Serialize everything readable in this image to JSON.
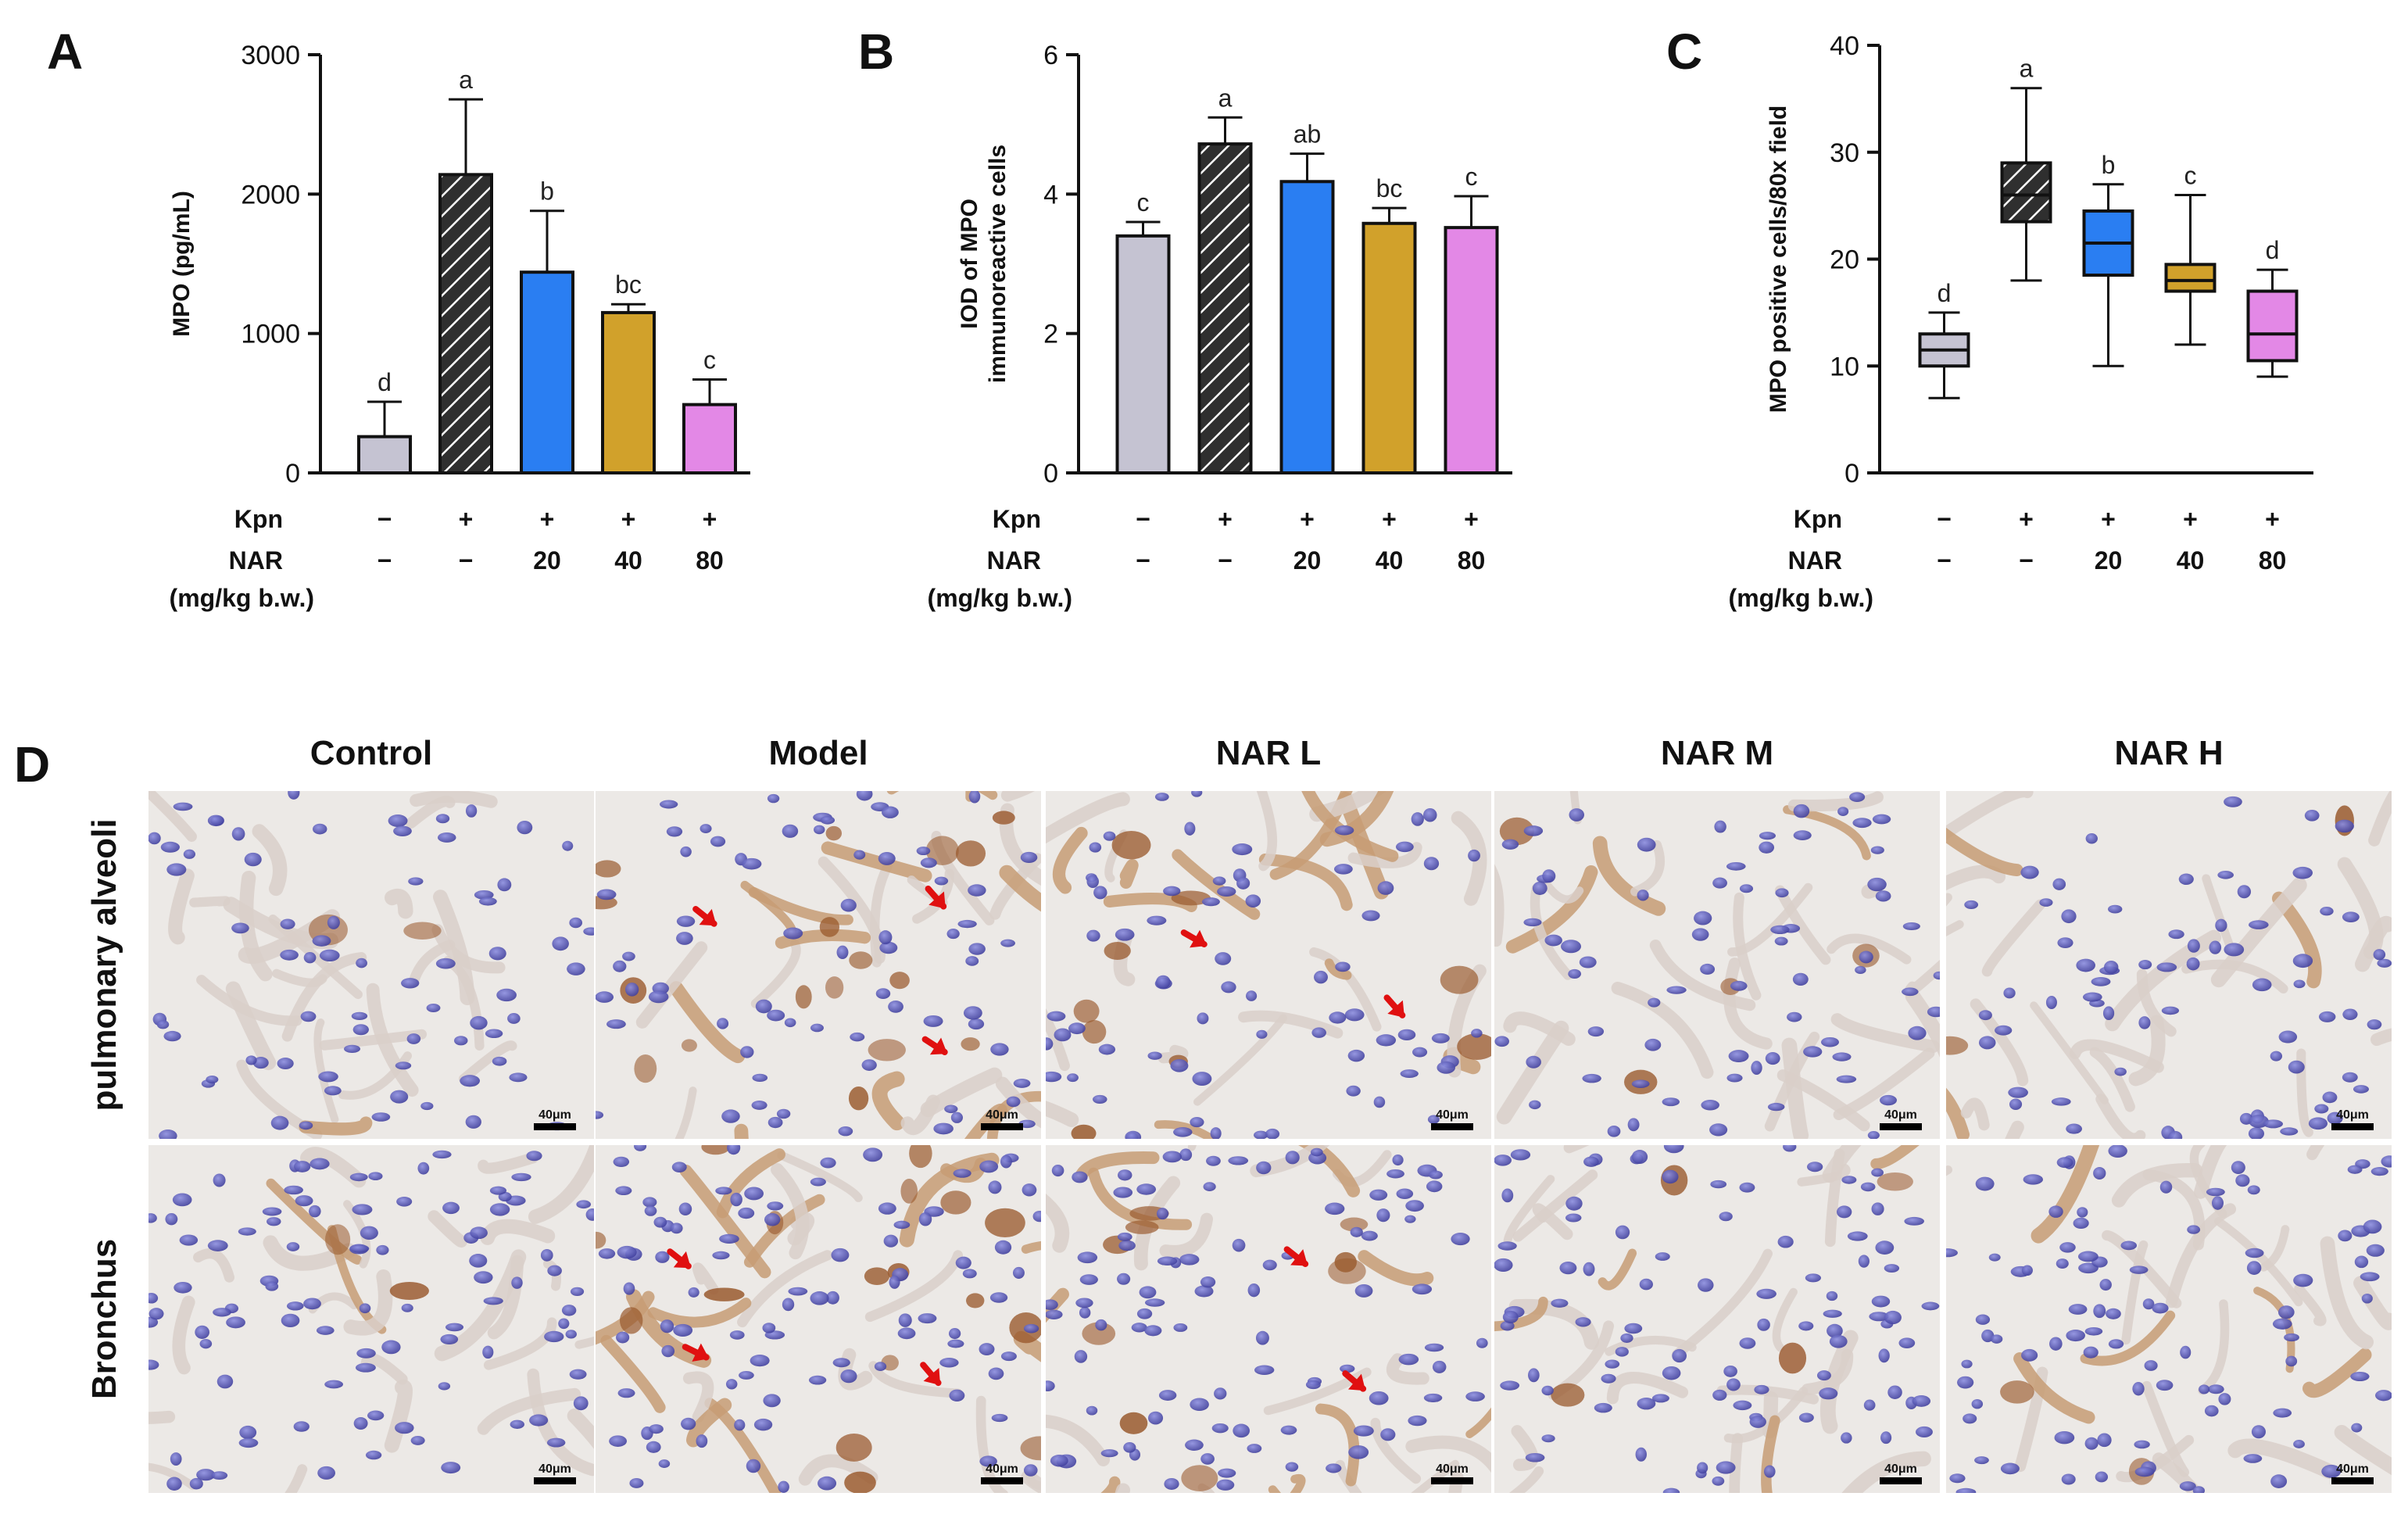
{
  "conditions": {
    "kpn_label": "Kpn",
    "nar_label": "NAR",
    "nar_unit": "(mg/kg b.w.)",
    "kpn": [
      "−",
      "+",
      "+",
      "+",
      "+"
    ],
    "nar": [
      "−",
      "−",
      "20",
      "40",
      "80"
    ]
  },
  "colors": {
    "control": "#c5c3d2",
    "model": "#2f2f2f",
    "nar_l": "#2a7ef2",
    "nar_m": "#d1a12b",
    "nar_h": "#e388e6"
  },
  "chart_data": [
    {
      "panel": "A",
      "type": "bar",
      "ylabel": "MPO (pg/mL)",
      "ylim": [
        0,
        3000
      ],
      "yticks": [
        "0",
        "1000",
        "2000",
        "3000"
      ],
      "categories": [
        "Control",
        "Model",
        "NAR 20",
        "NAR 40",
        "NAR 80"
      ],
      "values": [
        260,
        2140,
        1440,
        1150,
        490
      ],
      "errors": [
        250,
        540,
        440,
        60,
        180
      ],
      "significance": [
        "d",
        "a",
        "b",
        "bc",
        "c"
      ]
    },
    {
      "panel": "B",
      "type": "bar",
      "ylabel": [
        "IOD of MPO",
        "immunoreactive cells"
      ],
      "ylim": [
        0,
        6
      ],
      "yticks": [
        "0",
        "2",
        "4",
        "6"
      ],
      "categories": [
        "Control",
        "Model",
        "NAR 20",
        "NAR 40",
        "NAR 80"
      ],
      "values": [
        3.4,
        4.72,
        4.18,
        3.58,
        3.52
      ],
      "errors": [
        0.2,
        0.38,
        0.4,
        0.22,
        0.45
      ],
      "significance": [
        "c",
        "a",
        "ab",
        "bc",
        "c"
      ]
    },
    {
      "panel": "C",
      "type": "box",
      "ylabel": "MPO positive cells/80x field",
      "ylim": [
        0,
        40
      ],
      "yticks": [
        "0",
        "10",
        "20",
        "30",
        "40"
      ],
      "categories": [
        "Control",
        "Model",
        "NAR 20",
        "NAR 40",
        "NAR 80"
      ],
      "boxes": [
        {
          "min": 7,
          "q1": 10,
          "median": 11.5,
          "q3": 13,
          "max": 15
        },
        {
          "min": 18,
          "q1": 23.5,
          "median": 26,
          "q3": 29,
          "max": 36
        },
        {
          "min": 10,
          "q1": 18.5,
          "median": 21.5,
          "q3": 24.5,
          "max": 27
        },
        {
          "min": 12,
          "q1": 17,
          "median": 18,
          "q3": 19.5,
          "max": 26
        },
        {
          "min": 9,
          "q1": 10.5,
          "median": 13,
          "q3": 17,
          "max": 19
        }
      ],
      "significance": [
        "d",
        "a",
        "b",
        "c",
        "d"
      ]
    }
  ],
  "panel_d": {
    "letter": "D",
    "columns": [
      "Control",
      "Model",
      "NAR L",
      "NAR M",
      "NAR H"
    ],
    "rows": [
      "pulmonary alveoli",
      "Bronchus"
    ],
    "scale_bar": "40μm",
    "arrow_counts": [
      [
        0,
        3,
        2,
        0,
        0
      ],
      [
        0,
        3,
        2,
        0,
        0
      ]
    ]
  },
  "panel_letters": [
    "A",
    "B",
    "C"
  ]
}
